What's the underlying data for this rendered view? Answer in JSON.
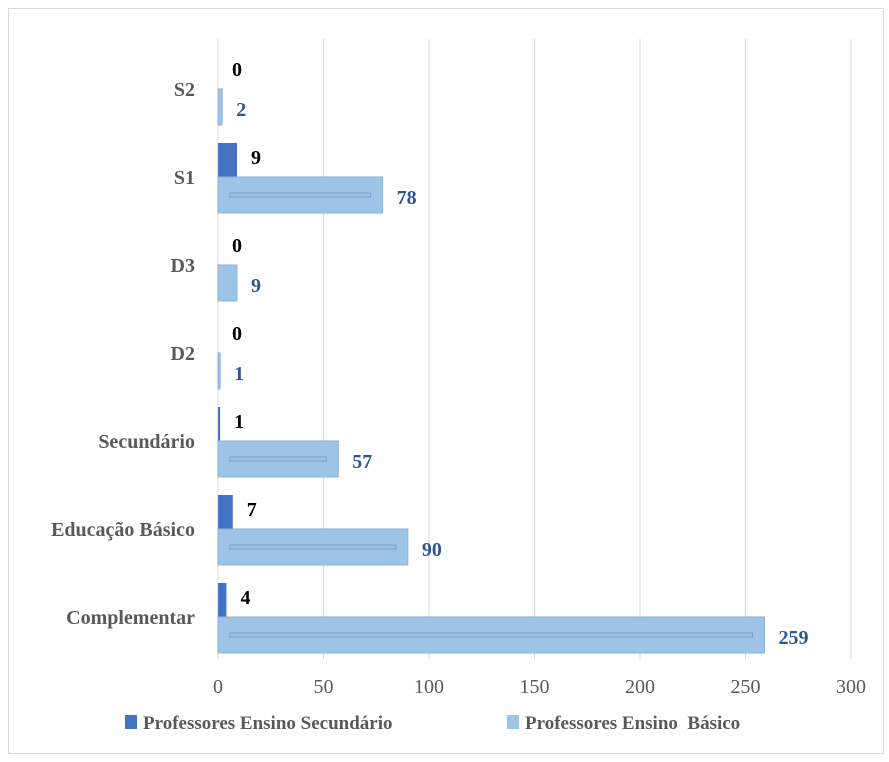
{
  "chart_data": {
    "type": "bar",
    "orientation": "horizontal",
    "categories": [
      "S2",
      "S1",
      "D3",
      "D2",
      "Secundário",
      "Educação Básico",
      "Complementar"
    ],
    "series": [
      {
        "name": "Professores Ensino Secundário",
        "values": [
          0,
          9,
          0,
          0,
          1,
          7,
          4
        ],
        "color": "#4472c4"
      },
      {
        "name": "Professores Ensino  Básico",
        "values": [
          2,
          78,
          9,
          1,
          57,
          90,
          259
        ],
        "color": "#9dc3e6"
      }
    ],
    "x_ticks": [
      "0",
      "50",
      "100",
      "150",
      "200",
      "250",
      "300"
    ],
    "xlim": [
      0,
      300
    ],
    "grid": "vertical",
    "legend_position": "bottom",
    "value_label_colors": {
      "secundario": "#000000",
      "basico": "#2f5597"
    }
  }
}
